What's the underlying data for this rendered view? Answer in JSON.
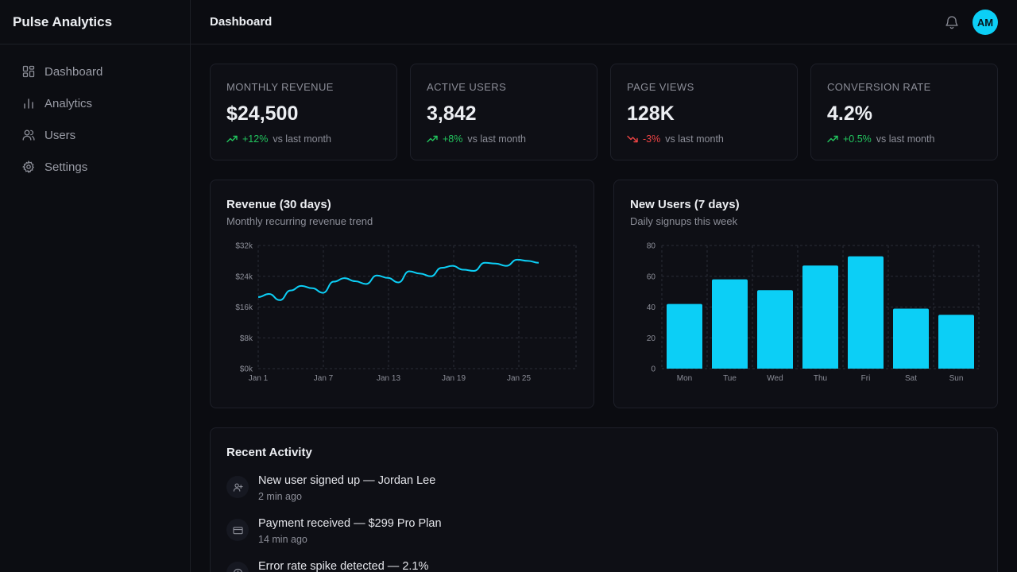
{
  "app": {
    "brand": "Pulse Analytics"
  },
  "sidebar": {
    "items": [
      {
        "label": "Dashboard",
        "icon": "grid-icon"
      },
      {
        "label": "Analytics",
        "icon": "bar-chart-icon"
      },
      {
        "label": "Users",
        "icon": "users-icon"
      },
      {
        "label": "Settings",
        "icon": "gear-icon"
      }
    ]
  },
  "header": {
    "title": "Dashboard",
    "avatar_initials": "AM"
  },
  "colors": {
    "accent": "#0ccff6",
    "up": "#22c55e",
    "down": "#ef4444"
  },
  "stats": [
    {
      "label": "MONTHLY REVENUE",
      "value": "$24,500",
      "change": "+12%",
      "direction": "up",
      "suffix": "vs last month"
    },
    {
      "label": "ACTIVE USERS",
      "value": "3,842",
      "change": "+8%",
      "direction": "up",
      "suffix": "vs last month"
    },
    {
      "label": "PAGE VIEWS",
      "value": "128K",
      "change": "-3%",
      "direction": "down",
      "suffix": "vs last month"
    },
    {
      "label": "CONVERSION RATE",
      "value": "4.2%",
      "change": "+0.5%",
      "direction": "up",
      "suffix": "vs last month"
    }
  ],
  "chart_data": [
    {
      "type": "line",
      "title": "Revenue (30 days)",
      "subtitle": "Monthly recurring revenue trend",
      "x_ticks": [
        "Jan 1",
        "Jan 7",
        "Jan 13",
        "Jan 19",
        "Jan 25"
      ],
      "y_ticks": [
        "$0k",
        "$8k",
        "$16k",
        "$24k",
        "$32k"
      ],
      "ylim": [
        0,
        32000
      ],
      "grid": true,
      "series": [
        {
          "values": [
            18600,
            19400,
            17800,
            20300,
            21500,
            20900,
            19700,
            22600,
            23500,
            22700,
            22000,
            24200,
            23600,
            22400,
            25300,
            24700,
            24000,
            26200,
            26700,
            25700,
            25400,
            27500,
            27300,
            26700,
            28300,
            28000,
            27500
          ]
        }
      ]
    },
    {
      "type": "bar",
      "title": "New Users (7 days)",
      "subtitle": "Daily signups this week",
      "categories": [
        "Mon",
        "Tue",
        "Wed",
        "Thu",
        "Fri",
        "Sat",
        "Sun"
      ],
      "values": [
        42,
        58,
        51,
        67,
        73,
        39,
        35
      ],
      "y_ticks": [
        "0",
        "20",
        "40",
        "60",
        "80"
      ],
      "ylim": [
        0,
        80
      ],
      "grid": true
    }
  ],
  "activity": {
    "title": "Recent Activity",
    "items": [
      {
        "text": "New user signed up — Jordan Lee",
        "time": "2 min ago",
        "icon": "user-plus-icon"
      },
      {
        "text": "Payment received — $299 Pro Plan",
        "time": "14 min ago",
        "icon": "credit-card-icon"
      },
      {
        "text": "Error rate spike detected — 2.1%",
        "time": "",
        "icon": "alert-circle-icon"
      }
    ]
  }
}
